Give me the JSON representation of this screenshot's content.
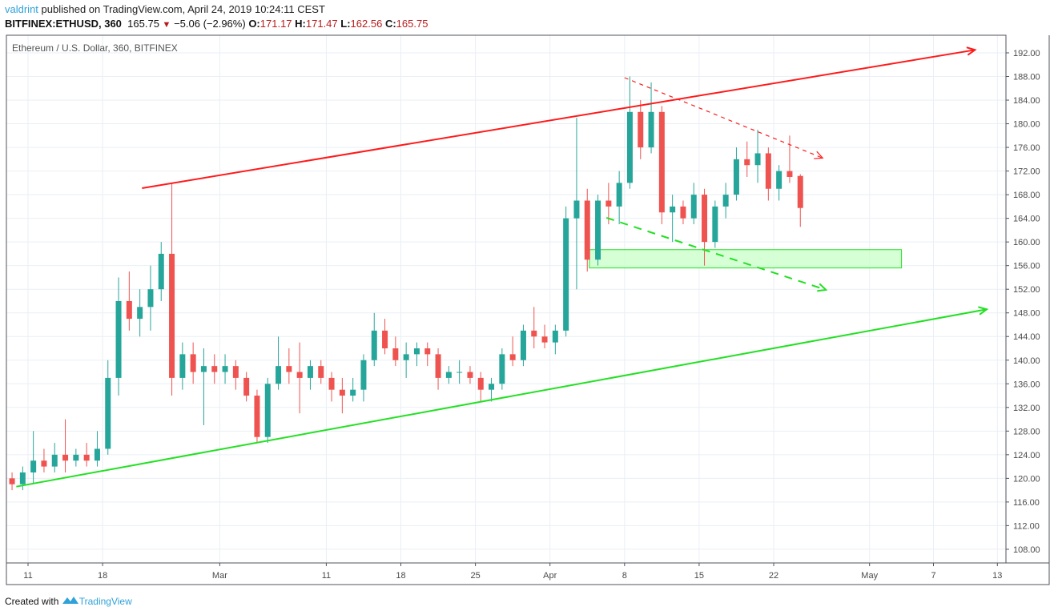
{
  "header": {
    "user": "valdrint",
    "published": " published on TradingView.com, April 24, 2019 10:24:11 CEST",
    "symbol": "BITFINEX:ETHUSD, 360",
    "last": "165.75",
    "change": "−5.06 (−2.96%)",
    "o_label": "O:",
    "o": "171.17",
    "h_label": "H:",
    "h": "171.47",
    "l_label": "L:",
    "l": "162.56",
    "c_label": "C:",
    "c": "165.75"
  },
  "legend": "Ethereum / U.S. Dollar, 360, BITFINEX",
  "footer": {
    "prefix": "Created with",
    "brand": "TradingView"
  },
  "colors": {
    "up": "#26a69a",
    "down": "#ef5350",
    "resistance": "#ff1a1a",
    "support": "#22e022",
    "zone": "#ccffcc"
  },
  "chart_data": {
    "type": "candlestick",
    "title": "Ethereum / U.S. Dollar, 360, BITFINEX",
    "start_date": "2019-02-09",
    "interval_note": "approximate daily aggregation",
    "ylim": [
      104,
      195
    ],
    "y_ticks": [
      108,
      112,
      116,
      120,
      124,
      128,
      132,
      136,
      140,
      144,
      148,
      152,
      156,
      160,
      164,
      168,
      172,
      176,
      180,
      184,
      188,
      192
    ],
    "x_ticks": [
      {
        "label": "11",
        "day": 2
      },
      {
        "label": "18",
        "day": 9
      },
      {
        "label": "Mar",
        "day": 20
      },
      {
        "label": "11",
        "day": 30
      },
      {
        "label": "18",
        "day": 37
      },
      {
        "label": "25",
        "day": 44
      },
      {
        "label": "Apr",
        "day": 51
      },
      {
        "label": "8",
        "day": 58
      },
      {
        "label": "15",
        "day": 65
      },
      {
        "label": "22",
        "day": 72
      },
      {
        "label": "May",
        "day": 81
      },
      {
        "label": "7",
        "day": 87
      },
      {
        "label": "13",
        "day": 93
      }
    ],
    "grid": true,
    "ohlc": [
      [
        120,
        121,
        118,
        119
      ],
      [
        119,
        122,
        118,
        121
      ],
      [
        121,
        128,
        119,
        123
      ],
      [
        123,
        125,
        121,
        122
      ],
      [
        122,
        126,
        121,
        124
      ],
      [
        124,
        130,
        121,
        123
      ],
      [
        123,
        125,
        122,
        124
      ],
      [
        124,
        126,
        122,
        123
      ],
      [
        123,
        128,
        122,
        125
      ],
      [
        125,
        140,
        124,
        137
      ],
      [
        137,
        154,
        134,
        150
      ],
      [
        150,
        155,
        145,
        147
      ],
      [
        147,
        152,
        144,
        149
      ],
      [
        149,
        156,
        145,
        152
      ],
      [
        152,
        160,
        150,
        158
      ],
      [
        158,
        170,
        134,
        137
      ],
      [
        137,
        143,
        135,
        141
      ],
      [
        141,
        143,
        136,
        138
      ],
      [
        138,
        142,
        129,
        139
      ],
      [
        139,
        141,
        136,
        138
      ],
      [
        138,
        141,
        136,
        139
      ],
      [
        139,
        140,
        135,
        137
      ],
      [
        137,
        138,
        133,
        134
      ],
      [
        134,
        135,
        126,
        127
      ],
      [
        127,
        137,
        126,
        136
      ],
      [
        136,
        144,
        135,
        139
      ],
      [
        139,
        142,
        136,
        138
      ],
      [
        138,
        143,
        131,
        137
      ],
      [
        137,
        140,
        135,
        139
      ],
      [
        139,
        140,
        136,
        137
      ],
      [
        137,
        138,
        133,
        135
      ],
      [
        135,
        137,
        131,
        134
      ],
      [
        134,
        137,
        133,
        135
      ],
      [
        135,
        141,
        133,
        140
      ],
      [
        140,
        148,
        139,
        145
      ],
      [
        145,
        147,
        141,
        142
      ],
      [
        142,
        144,
        139,
        140
      ],
      [
        140,
        143,
        137,
        141
      ],
      [
        141,
        143,
        139,
        142
      ],
      [
        142,
        143,
        139,
        141
      ],
      [
        141,
        142,
        135,
        137
      ],
      [
        137,
        139,
        136,
        138
      ],
      [
        138,
        140,
        136,
        138
      ],
      [
        138,
        139,
        136,
        137
      ],
      [
        137,
        138,
        133,
        135
      ],
      [
        135,
        137,
        133,
        136
      ],
      [
        136,
        142,
        135,
        141
      ],
      [
        141,
        144,
        139,
        140
      ],
      [
        140,
        146,
        139,
        145
      ],
      [
        145,
        149,
        142,
        144
      ],
      [
        144,
        146,
        142,
        143
      ],
      [
        143,
        146,
        141,
        145
      ],
      [
        145,
        166,
        144,
        164
      ],
      [
        164,
        181,
        152,
        167
      ],
      [
        167,
        169,
        155,
        157
      ],
      [
        157,
        168,
        156,
        167
      ],
      [
        167,
        170,
        163,
        166
      ],
      [
        166,
        172,
        163,
        170
      ],
      [
        170,
        188,
        169,
        182
      ],
      [
        182,
        184,
        174,
        176
      ],
      [
        176,
        187,
        175,
        182
      ],
      [
        182,
        183,
        163,
        165
      ],
      [
        165,
        168,
        160,
        166
      ],
      [
        166,
        167,
        163,
        164
      ],
      [
        164,
        170,
        163,
        168
      ],
      [
        168,
        169,
        156,
        160
      ],
      [
        160,
        167,
        159,
        166
      ],
      [
        166,
        170,
        164,
        168
      ],
      [
        168,
        176,
        167,
        174
      ],
      [
        174,
        177,
        171,
        173
      ],
      [
        173,
        179,
        170,
        175
      ],
      [
        175,
        176,
        167,
        169
      ],
      [
        169,
        173,
        167,
        172
      ],
      [
        172,
        178,
        170,
        171
      ],
      [
        171.17,
        171.47,
        162.56,
        165.75
      ]
    ],
    "annotations": [
      {
        "name": "resistance-trendline",
        "kind": "line",
        "style": "solid",
        "color": "resistance",
        "from": [
          12.7,
          169.1
        ],
        "to": [
          90.9,
          192.5
        ],
        "arrow": true
      },
      {
        "name": "support-trendline",
        "kind": "line",
        "style": "solid",
        "color": "support",
        "from": [
          0.9,
          118.6
        ],
        "to": [
          92.0,
          148.6
        ],
        "arrow": true
      },
      {
        "name": "descending-resistance",
        "kind": "line",
        "style": "dashed",
        "color": "resistance",
        "from": [
          58.0,
          187.8
        ],
        "to": [
          76.6,
          174.2
        ],
        "arrow": true
      },
      {
        "name": "descending-support",
        "kind": "line",
        "style": "dashed",
        "color": "support",
        "from": [
          56.3,
          164.1
        ],
        "to": [
          76.9,
          151.9
        ],
        "arrow": true
      },
      {
        "name": "support-zone",
        "kind": "box",
        "color": "zone",
        "from": [
          54.7,
          158.7
        ],
        "to": [
          84.0,
          155.6
        ]
      }
    ]
  }
}
